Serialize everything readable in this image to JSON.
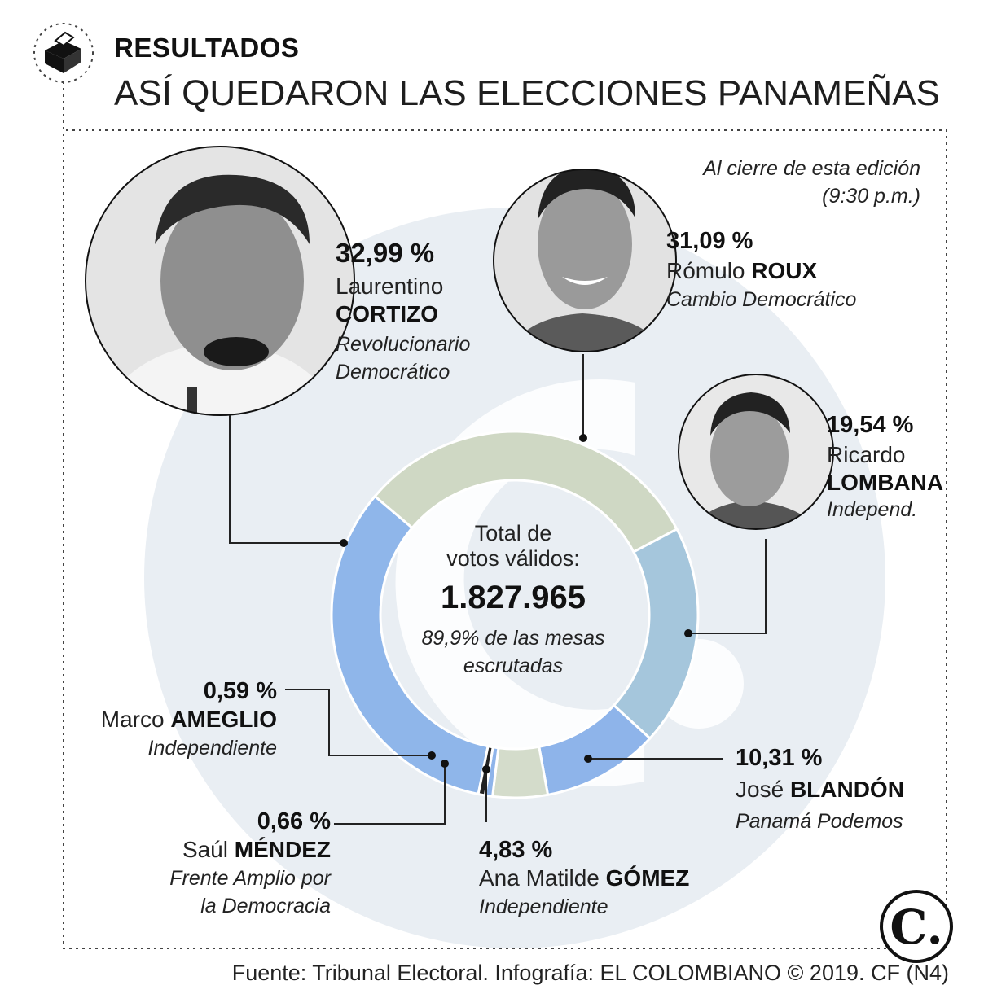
{
  "header": {
    "kicker": "RESULTADOS",
    "title": "ASÍ QUEDARON LAS ELECCIONES PANAMEÑAS",
    "cutoff_line1": "Al cierre de esta edición",
    "cutoff_line2": "(9:30 p.m.)"
  },
  "center": {
    "label_line1": "Total de",
    "label_line2": "votos válidos:",
    "total": "1.827.965",
    "note_line1": "89,9% de las mesas",
    "note_line2": "escrutadas"
  },
  "candidates": [
    {
      "pct": "32,99 %",
      "first": "Laurentino",
      "last": "CORTIZO",
      "party_line1": "Revolucionario",
      "party_line2": "Democrático"
    },
    {
      "pct": "31,09 %",
      "first": "Rómulo",
      "last": "ROUX",
      "party_line1": "Cambio Democrático",
      "party_line2": ""
    },
    {
      "pct": "19,54 %",
      "first": "Ricardo",
      "last": "LOMBANA",
      "party_line1": "Independ.",
      "party_line2": ""
    },
    {
      "pct": "10,31 %",
      "first": "José",
      "last": "BLANDÓN",
      "party_line1": "Panamá Podemos",
      "party_line2": ""
    },
    {
      "pct": "4,83 %",
      "first": "Ana Matilde",
      "last": "GÓMEZ",
      "party_line1": "Independiente",
      "party_line2": ""
    },
    {
      "pct": "0,66 %",
      "first": "Saúl",
      "last": "MÉNDEZ",
      "party_line1": "Frente Amplio por",
      "party_line2": "la Democracia"
    },
    {
      "pct": "0,59 %",
      "first": "Marco",
      "last": "AMEGLIO",
      "party_line1": "Independiente",
      "party_line2": ""
    }
  ],
  "source": "Fuente: Tribunal Electoral. Infografía: EL COLOMBIANO © 2019. CF (N4)",
  "logo_letter": "C.",
  "icons": {
    "header": "ballot-box-icon",
    "logo": "el-colombiano-logo-icon"
  },
  "colors": {
    "cortizo": "#8fb6ea",
    "roux": "#cfd8c4",
    "lombana": "#a5c6dc",
    "blandon": "#8eb4ea",
    "gomez": "#d4dccb",
    "mendez": "#8eb4ea",
    "ameglio": "#222222",
    "watermark": "#e9eef3",
    "frame": "#444444"
  },
  "chart_data": {
    "type": "pie",
    "donut": true,
    "unit": "%",
    "categories": [
      "CORTIZO",
      "ROUX",
      "LOMBANA",
      "BLANDÓN",
      "GÓMEZ",
      "MÉNDEZ",
      "AMEGLIO"
    ],
    "values": [
      32.99,
      31.09,
      19.54,
      10.31,
      4.83,
      0.66,
      0.59
    ],
    "labels": [
      "32,99 %",
      "31,09 %",
      "19,54 %",
      "10,31 %",
      "4,83 %",
      "0,66 %",
      "0,59 %"
    ],
    "center_total": "1.827.965"
  }
}
